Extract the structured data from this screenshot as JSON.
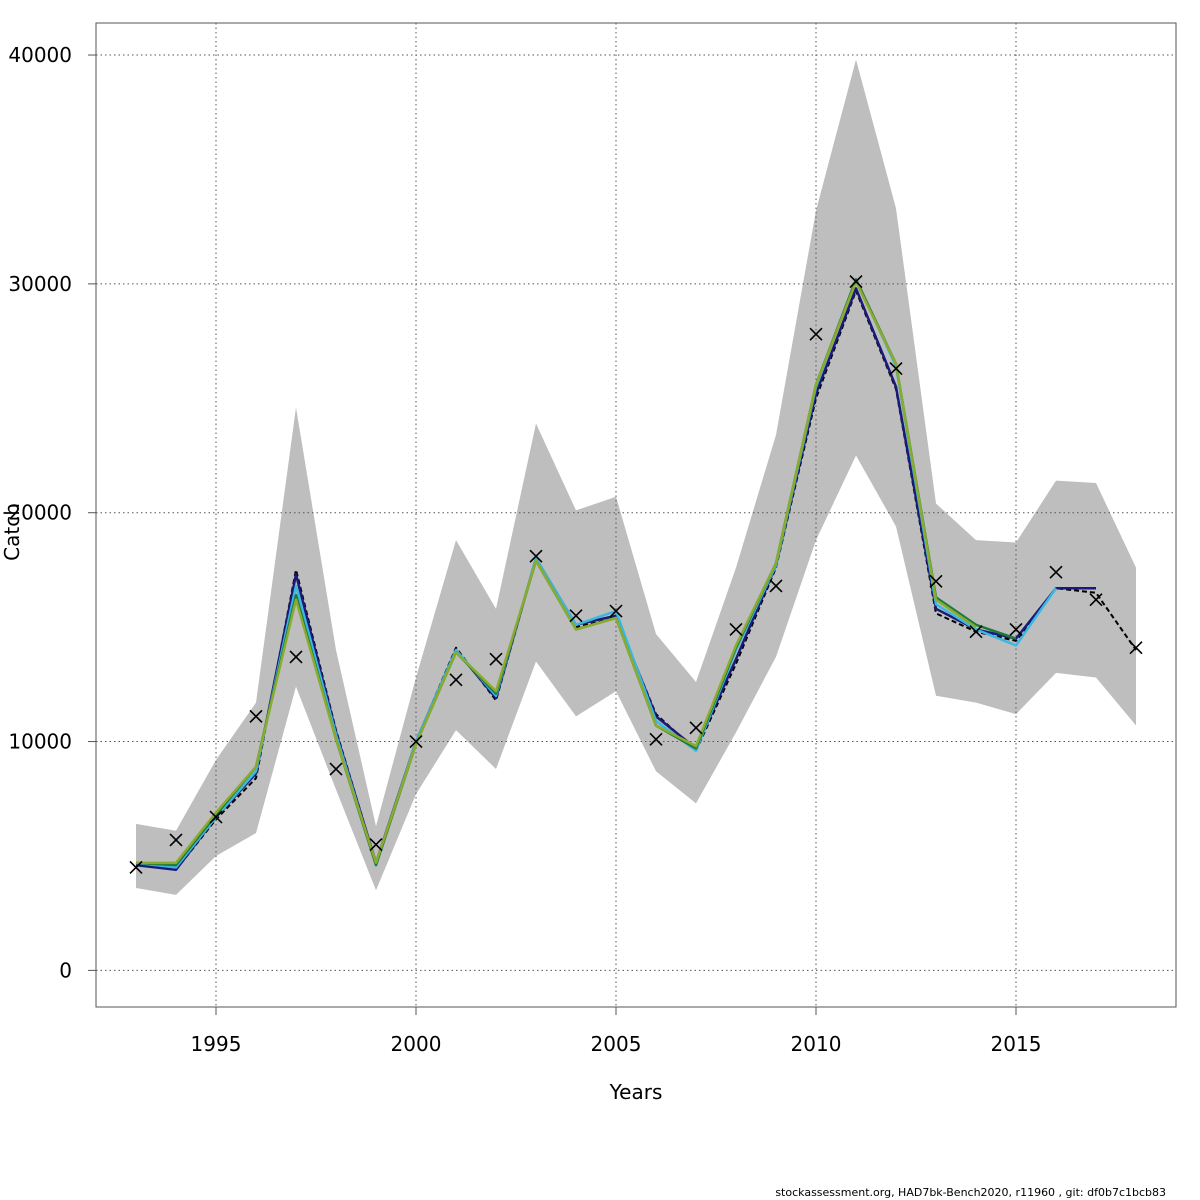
{
  "chart_data": {
    "type": "line",
    "xlabel": "Years",
    "ylabel": "Catch",
    "xlim": [
      1992.0,
      2019.0
    ],
    "ylim": [
      -1600,
      41400
    ],
    "x_ticks": [
      1995,
      2000,
      2005,
      2010,
      2015
    ],
    "y_ticks": [
      0,
      10000,
      20000,
      30000,
      40000
    ],
    "grid": true,
    "colors": {
      "band": "#bebebe",
      "observed_marker": "#000000",
      "series": [
        "#000000",
        "#1a1a7a",
        "#3bb8e0",
        "#1e7a3a",
        "#8bab2e"
      ]
    },
    "confidence_band": {
      "x": [
        1993,
        1994,
        1995,
        1996,
        1997,
        1998,
        1999,
        2000,
        2001,
        2002,
        2003,
        2004,
        2005,
        2006,
        2007,
        2008,
        2009,
        2010,
        2011,
        2012,
        2013,
        2014,
        2015,
        2016,
        2017,
        2018
      ],
      "upper": [
        6400,
        6100,
        9200,
        11700,
        24600,
        14000,
        6300,
        12800,
        18800,
        15800,
        23900,
        20100,
        20700,
        14700,
        12600,
        17600,
        23400,
        33200,
        39800,
        33300,
        20400,
        18800,
        18700,
        21400,
        21300,
        17600
      ],
      "lower": [
        3600,
        3300,
        5000,
        6000,
        12400,
        7900,
        3500,
        7700,
        10500,
        8800,
        13500,
        11100,
        12200,
        8700,
        7300,
        10400,
        13700,
        18800,
        22500,
        19400,
        12000,
        11700,
        11200,
        13000,
        12800,
        10700
      ]
    },
    "observed": {
      "x": [
        1993,
        1994,
        1995,
        1996,
        1997,
        1998,
        1999,
        2000,
        2001,
        2002,
        2003,
        2004,
        2005,
        2006,
        2007,
        2008,
        2009,
        2010,
        2011,
        2012,
        2013,
        2014,
        2015,
        2016,
        2017,
        2018
      ],
      "y": [
        4500,
        5700,
        6700,
        11100,
        13700,
        8800,
        5500,
        10000,
        12700,
        13600,
        18100,
        15500,
        15700,
        10100,
        10600,
        14900,
        16800,
        27800,
        30100,
        26300,
        17000,
        14800,
        14900,
        17400,
        16200,
        14100
      ]
    },
    "series": [
      {
        "x": [
          1993,
          1994,
          1995,
          1996,
          1997,
          1998,
          1999,
          2000,
          2001,
          2002,
          2003,
          2004,
          2005,
          2006,
          2007,
          2008,
          2009,
          2010,
          2011,
          2012,
          2013,
          2014,
          2015,
          2016,
          2017,
          2018
        ],
        "values": [
          4700,
          4400,
          6600,
          8400,
          17500,
          10500,
          4700,
          10000,
          14100,
          11800,
          18000,
          15000,
          15400,
          11200,
          9600,
          13400,
          17600,
          25000,
          29700,
          25400,
          15600,
          14800,
          14400,
          16700,
          16500,
          14000
        ]
      },
      {
        "x": [
          1993,
          1994,
          1995,
          1996,
          1997,
          1998,
          1999,
          2000,
          2001,
          2002,
          2003,
          2004,
          2005,
          2006,
          2007,
          2008,
          2009,
          2010,
          2011,
          2012,
          2013,
          2014,
          2015,
          2016,
          2017
        ],
        "values": [
          4600,
          4400,
          6700,
          8600,
          17300,
          10400,
          4700,
          10000,
          14000,
          11900,
          18000,
          15100,
          15500,
          11100,
          9700,
          13600,
          17700,
          25200,
          29800,
          25500,
          15800,
          14900,
          14500,
          16700,
          16700
        ]
      },
      {
        "x": [
          1993,
          1994,
          1995,
          1996,
          1997,
          1998,
          1999,
          2000,
          2001,
          2002,
          2003,
          2004,
          2005,
          2006,
          2007,
          2008,
          2009,
          2010,
          2011,
          2012,
          2013,
          2014,
          2015,
          2016
        ],
        "values": [
          4700,
          4500,
          6700,
          8700,
          16800,
          10300,
          4600,
          10000,
          14000,
          12000,
          18000,
          15100,
          15700,
          10900,
          9600,
          14000,
          17700,
          25500,
          30200,
          26400,
          16000,
          14900,
          14200,
          16700
        ]
      },
      {
        "x": [
          1993,
          1994,
          1995,
          1996,
          1997,
          1998,
          1999,
          2000,
          2001,
          2002,
          2003,
          2004,
          2005,
          2006,
          2007,
          2008,
          2009,
          2010,
          2011,
          2012,
          2013,
          2014,
          2015
        ],
        "values": [
          4700,
          4600,
          6800,
          8900,
          16400,
          10100,
          4600,
          9900,
          13900,
          12100,
          17900,
          14900,
          15400,
          10700,
          9700,
          14100,
          17800,
          25600,
          30200,
          26500,
          16300,
          15100,
          14500
        ]
      },
      {
        "x": [
          1993,
          1994,
          1995,
          1996,
          1997,
          1998,
          1999,
          2000,
          2001,
          2002,
          2003,
          2004,
          2005,
          2006,
          2007,
          2008,
          2009,
          2010,
          2011,
          2012,
          2013,
          2014
        ],
        "values": [
          4700,
          4700,
          6900,
          8900,
          16200,
          10100,
          4700,
          9900,
          13900,
          12200,
          17900,
          14900,
          15400,
          10700,
          9800,
          14200,
          17800,
          25600,
          30100,
          26500,
          16200,
          15000
        ]
      }
    ]
  },
  "footer": "stockassessment.org, HAD7bk-Bench2020, r11960 , git: df0b7c1bcb83"
}
